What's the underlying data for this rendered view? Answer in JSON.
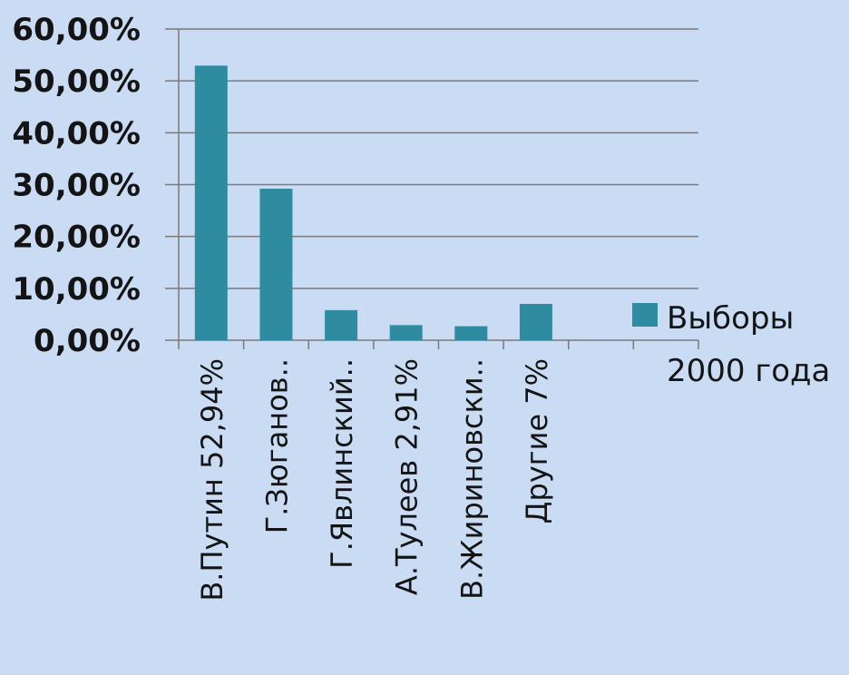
{
  "chart_data": {
    "type": "bar",
    "categories": [
      "В.Путин 52,94%",
      "Г.Зюганов..",
      "Г.Явлинский..",
      "А.Тулеев 2,91%",
      "В.Жириновски..",
      "Другие 7%",
      null,
      null
    ],
    "series": [
      {
        "name": "Выборы 2000 года",
        "color": "#2f8b9f",
        "values": [
          52.94,
          29.21,
          5.8,
          2.91,
          2.7,
          7,
          null,
          null
        ]
      }
    ],
    "ylim": [
      0,
      60
    ],
    "yticks": [
      {
        "value": 0,
        "label": "0,00%"
      },
      {
        "value": 10,
        "label": "10,00%"
      },
      {
        "value": 20,
        "label": "20,00%"
      },
      {
        "value": 30,
        "label": "30,00%"
      },
      {
        "value": 40,
        "label": "40,00%"
      },
      {
        "value": 50,
        "label": "50,00%"
      },
      {
        "value": 60,
        "label": "60,00%"
      }
    ],
    "grid": true,
    "legend": "right"
  }
}
